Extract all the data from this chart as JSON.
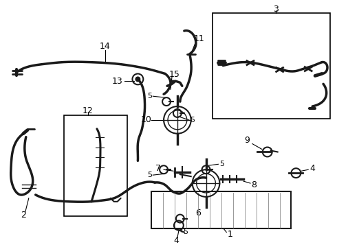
{
  "bg": "#ffffff",
  "lc": "#1a1a1a",
  "lw_hose": 2.2,
  "lw_thin": 1.2,
  "figsize": [
    4.9,
    3.6
  ],
  "dpi": 100
}
